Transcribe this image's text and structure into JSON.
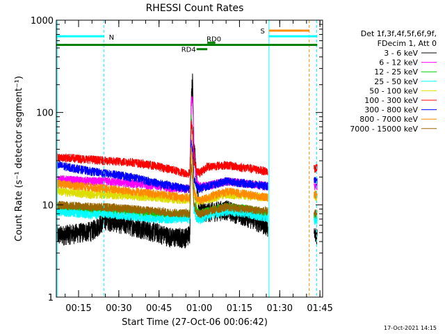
{
  "chart_data": {
    "type": "line",
    "title": "RHESSI Count Rates",
    "xlabel": "Start Time (27-Oct-06 00:06:42)",
    "ylabel": "Count Rate (s⁻¹ detector segment⁻¹)",
    "y_scale": "log",
    "ylim": [
      1,
      1000
    ],
    "y_ticks": [
      {
        "value": 1,
        "label": "1"
      },
      {
        "value": 10,
        "label": "10"
      },
      {
        "value": 100,
        "label": "100"
      },
      {
        "value": 1000,
        "label": "1000"
      }
    ],
    "xlim_minutes": [
      6.7,
      106
    ],
    "x_ticks": [
      {
        "value": 15,
        "label": "00:15"
      },
      {
        "value": 30,
        "label": "00:30"
      },
      {
        "value": 45,
        "label": "00:45"
      },
      {
        "value": 60,
        "label": "01:00"
      },
      {
        "value": 75,
        "label": "01:15"
      },
      {
        "value": 90,
        "label": "01:30"
      },
      {
        "value": 105,
        "label": "01:45"
      }
    ],
    "legend": {
      "placement": "right",
      "header": [
        "Det 1f,3f,4f,5f,6f,9f,",
        "FDecim 1, Att 0"
      ]
    },
    "series": [
      {
        "name": "3 - 6 keV",
        "color": "#000000",
        "x": [
          7,
          20,
          25,
          35,
          45,
          50,
          55,
          56.5,
          57,
          57.5,
          58,
          59,
          60,
          63,
          70,
          78,
          85.5,
          103,
          104
        ],
        "y": [
          4.7,
          5.3,
          7.0,
          6.0,
          5.0,
          4.5,
          4.5,
          5.0,
          150,
          220,
          50,
          18,
          9.0,
          8.5,
          9.0,
          7.5,
          6.0,
          4.6,
          4.8
        ]
      },
      {
        "name": "6 - 12 keV",
        "color": "#ff00ff",
        "x": [
          7,
          20,
          25,
          35,
          45,
          50,
          55,
          56.5,
          57,
          57.5,
          58,
          59,
          60,
          63,
          70,
          78,
          85.5,
          103,
          104
        ],
        "y": [
          19,
          18,
          18,
          17,
          16,
          15,
          15,
          15,
          125,
          150,
          40,
          18,
          16,
          16,
          18,
          17,
          16,
          16,
          16
        ]
      },
      {
        "name": "12 - 25 keV",
        "color": "#00cc00",
        "x": [
          7,
          20,
          25,
          35,
          45,
          50,
          55,
          56.5,
          57,
          57.5,
          58,
          59,
          60,
          63,
          70,
          78,
          85.5,
          103,
          104
        ],
        "y": [
          9.5,
          8.8,
          9.0,
          8.5,
          8.0,
          7.8,
          8.0,
          8.0,
          90,
          60,
          16,
          9.0,
          8.0,
          8.5,
          9.5,
          9.0,
          8.0,
          7.5,
          7.5
        ]
      },
      {
        "name": "25 - 50 keV",
        "color": "#00ffff",
        "x": [
          7,
          20,
          25,
          35,
          45,
          50,
          55,
          56.5,
          57,
          57.5,
          58,
          59,
          60,
          63,
          70,
          78,
          85.5,
          103,
          104
        ],
        "y": [
          8.5,
          7.8,
          8.0,
          7.5,
          7.0,
          7.0,
          7.2,
          7.0,
          30,
          20,
          9.0,
          7.0,
          6.8,
          7.5,
          8.5,
          8.0,
          7.2,
          6.8,
          6.8
        ]
      },
      {
        "name": "50 - 100 keV",
        "color": "#dddd00",
        "x": [
          7,
          20,
          25,
          35,
          45,
          50,
          55,
          56.5,
          57,
          57.5,
          58,
          59,
          60,
          63,
          70,
          78,
          85.5,
          103,
          104
        ],
        "y": [
          14,
          13,
          13,
          12.5,
          12,
          11.5,
          11.5,
          11.5,
          35,
          25,
          13,
          11,
          11,
          11.5,
          13,
          12.5,
          12,
          12,
          12
        ]
      },
      {
        "name": "100 - 300 keV",
        "color": "#ff0000",
        "x": [
          7,
          20,
          25,
          35,
          45,
          50,
          55,
          56.5,
          57,
          57.5,
          58,
          59,
          60,
          63,
          70,
          78,
          85.5,
          103,
          104
        ],
        "y": [
          33,
          31,
          30,
          29,
          26,
          24,
          22,
          22,
          80,
          60,
          30,
          24,
          22,
          26,
          27,
          25,
          23,
          25,
          25
        ]
      },
      {
        "name": "300 - 800 keV",
        "color": "#0000ff",
        "x": [
          7,
          20,
          25,
          35,
          45,
          50,
          55,
          56.5,
          57,
          57.5,
          58,
          59,
          60,
          63,
          70,
          78,
          85.5,
          103,
          104
        ],
        "y": [
          27,
          23,
          22,
          20,
          17,
          16,
          15,
          15,
          50,
          40,
          20,
          16,
          15,
          16,
          18,
          17,
          16,
          18,
          18
        ]
      },
      {
        "name": "800 - 7000 keV",
        "color": "#ff8c00",
        "x": [
          7,
          20,
          25,
          35,
          45,
          50,
          55,
          56.5,
          57,
          57.5,
          58,
          59,
          60,
          63,
          70,
          78,
          85.5,
          103,
          104
        ],
        "y": [
          17,
          15.5,
          15,
          14,
          13,
          12.5,
          12,
          12,
          40,
          30,
          14,
          12,
          11,
          12,
          14,
          13,
          12,
          13,
          13
        ]
      },
      {
        "name": "7000 - 15000 keV",
        "color": "#996600",
        "x": [
          7,
          20,
          25,
          35,
          45,
          50,
          55,
          56.5,
          57,
          57.5,
          58,
          59,
          60,
          63,
          70,
          78,
          85.5,
          103,
          104
        ],
        "y": [
          10,
          9.5,
          9.5,
          9.0,
          8.5,
          8.2,
          8.2,
          8.0,
          28,
          20,
          10,
          8.5,
          8.0,
          8.5,
          9.5,
          9.0,
          8.5,
          8.0,
          8.0
        ]
      }
    ],
    "vertical_lines": [
      {
        "x": 7.0,
        "style": "solid",
        "color": "#00ffff"
      },
      {
        "x": 24.5,
        "style": "dashed",
        "color": "#00ffff"
      },
      {
        "x": 86.0,
        "style": "solid",
        "color": "#00ffff"
      },
      {
        "x": 101.0,
        "style": "dashed",
        "color": "#ff8c00"
      },
      {
        "x": 103.8,
        "style": "dashed",
        "color": "#00ffff"
      }
    ],
    "annotations": {
      "green_bar": {
        "label": "",
        "color": "#008000",
        "x1": 6.8,
        "x2": 104,
        "y": 540
      },
      "night": {
        "label": "N",
        "color": "#00ffff",
        "x1": 6.8,
        "x2": 24.5,
        "y": 670
      },
      "saa": {
        "label": "S",
        "color": "#ff8c00",
        "x1": 86,
        "x2": 101,
        "y": 770
      },
      "saa_cyan": {
        "color": "#00ffff",
        "x1": 86,
        "x2": 104,
        "y": 670
      },
      "rd4": {
        "label": "RD4",
        "color": "#008000",
        "x1": 59,
        "x2": 63,
        "y": 485
      },
      "rd0": {
        "label": "RD0",
        "color": "#008000",
        "x1": 63,
        "x2": 66,
        "y": 570
      }
    },
    "grid": false
  },
  "footer": {
    "timestamp": "17-Oct-2021 14:15"
  }
}
